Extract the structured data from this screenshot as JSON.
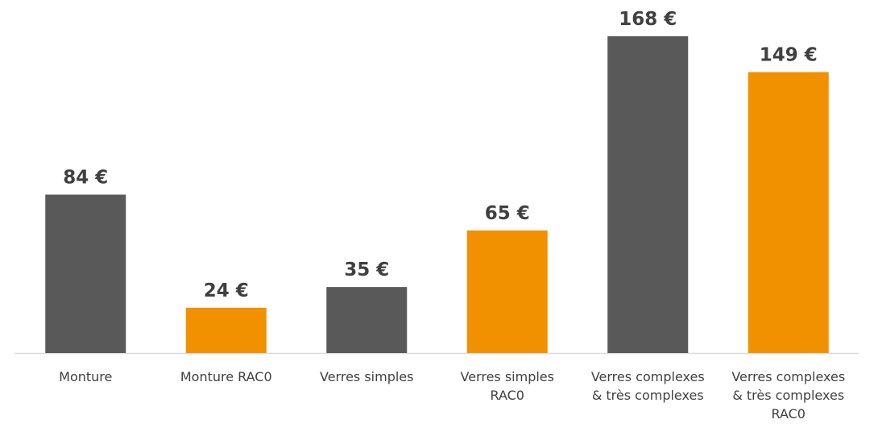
{
  "chart_data": {
    "type": "bar",
    "categories": [
      "Monture",
      "Monture RAC0",
      "Verres simples",
      "Verres simples RAC0",
      "Verres complexes & très complexes",
      "Verres complexes & très complexes RAC0"
    ],
    "values": [
      84,
      24,
      35,
      65,
      168,
      149
    ],
    "value_labels": [
      "84 €",
      "24 €",
      "35 €",
      "65 €",
      "168 €",
      "149 €"
    ],
    "colors": [
      "#595959",
      "#f29100",
      "#595959",
      "#f29100",
      "#595959",
      "#f29100"
    ],
    "ylim": [
      0,
      168
    ],
    "grid": false
  }
}
